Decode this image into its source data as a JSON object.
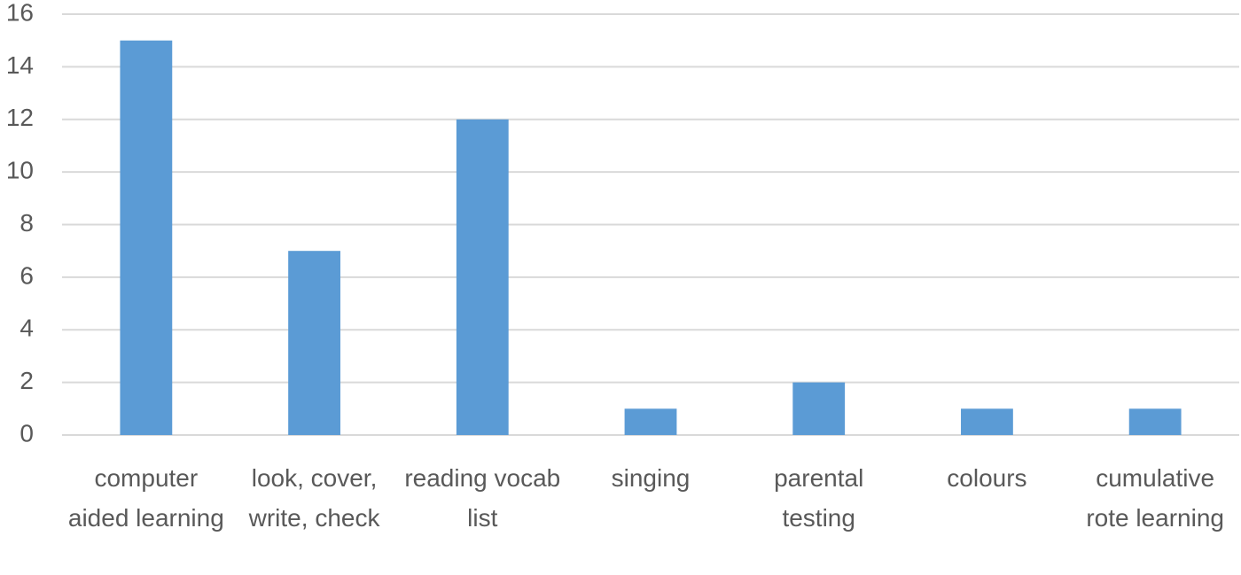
{
  "chart_data": {
    "type": "bar",
    "categories": [
      "computer aided learning",
      "look, cover, write, check",
      "reading vocab list",
      "singing",
      "parental testing",
      "colours",
      "cumulative rote learning"
    ],
    "values": [
      15,
      7,
      12,
      1,
      2,
      1,
      1
    ],
    "color": "#5b9bd5",
    "ylim": [
      0,
      16
    ],
    "yticks": [
      0,
      2,
      4,
      6,
      8,
      10,
      12,
      14,
      16
    ],
    "grid": true
  }
}
